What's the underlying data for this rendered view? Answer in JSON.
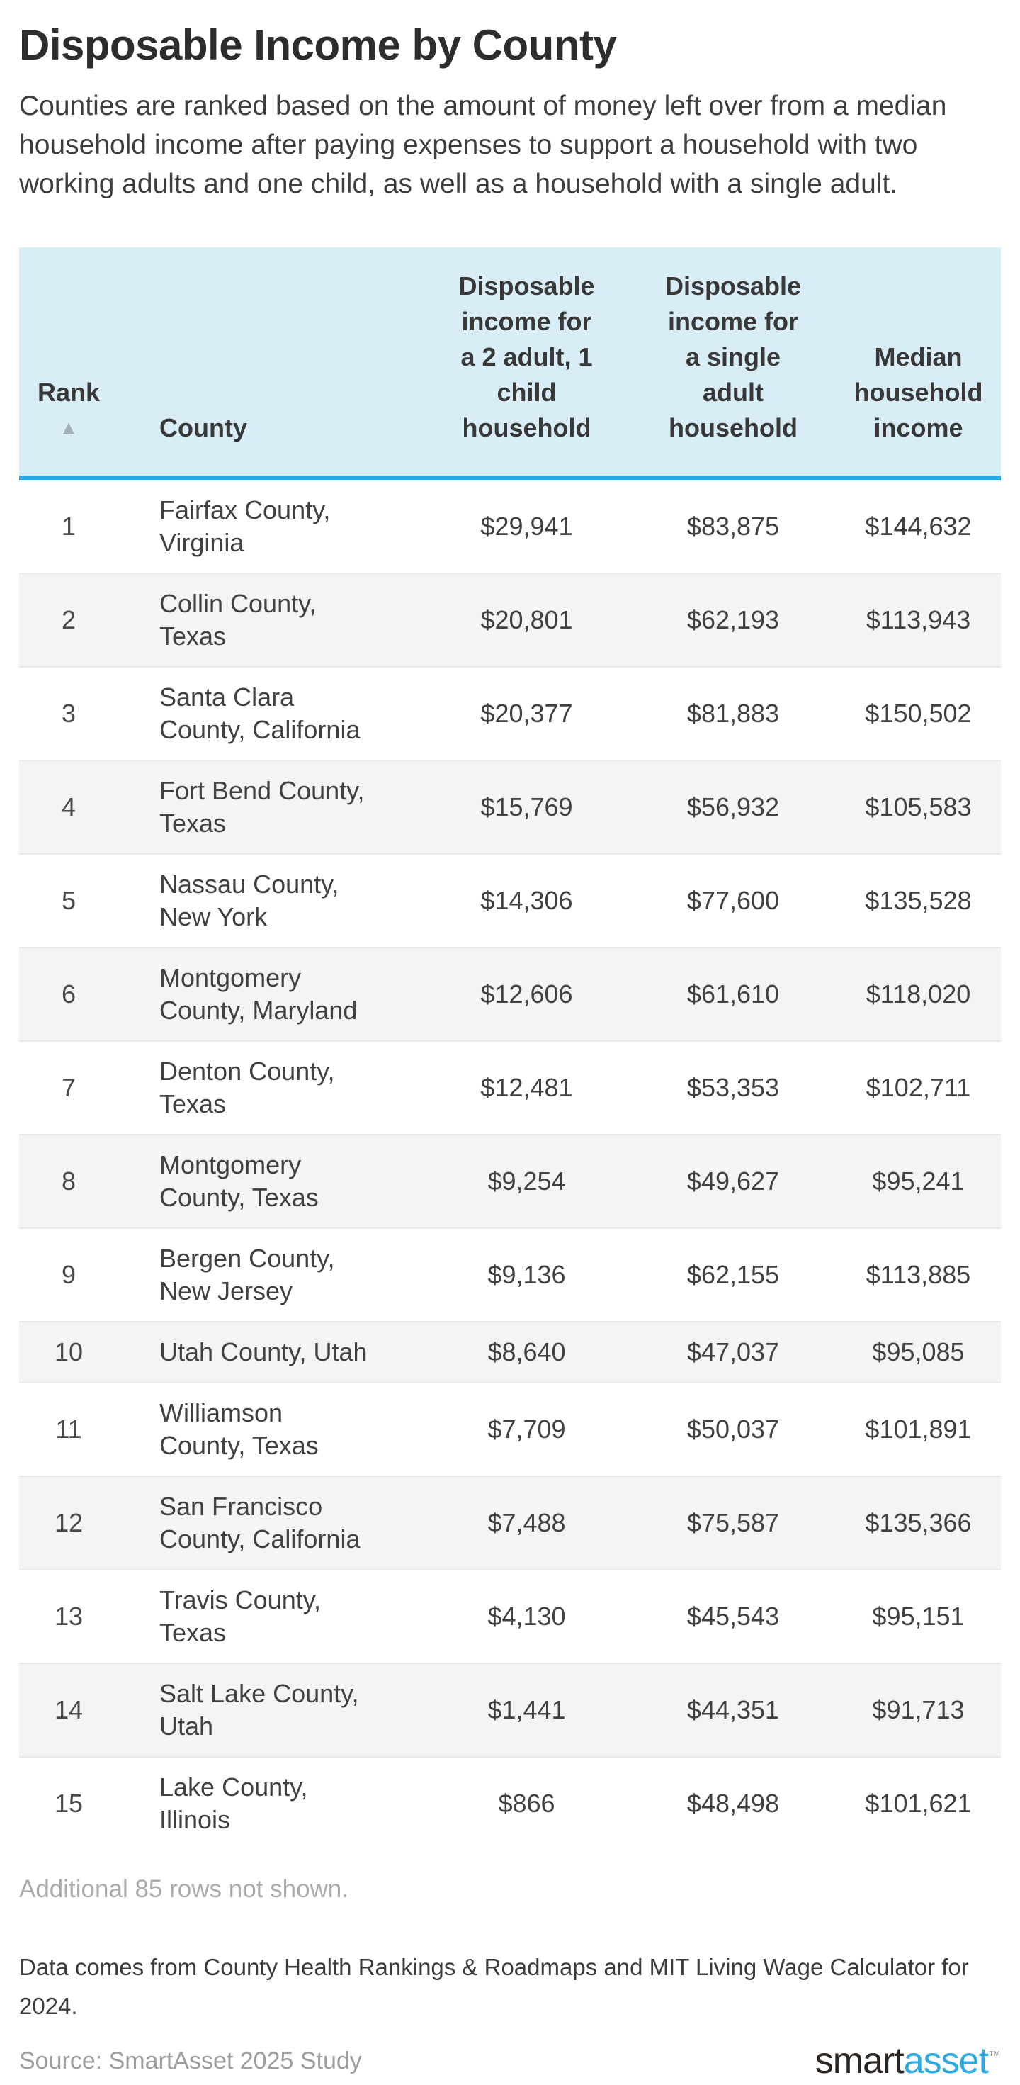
{
  "page": {
    "title": "Disposable Income by County",
    "subtitle": "Counties are ranked based on the amount of money left over from a median household income after paying expenses to support a household with two working adults and one child, as well as a household with a single adult."
  },
  "table": {
    "columns": [
      {
        "key": "rank",
        "label": "Rank",
        "sort_indicator": "▲"
      },
      {
        "key": "county",
        "label": "County"
      },
      {
        "key": "disposable_2a1c",
        "label": "Disposable income for a 2 adult, 1 child household"
      },
      {
        "key": "disposable_single",
        "label": "Disposable income for a single adult household"
      },
      {
        "key": "median_income",
        "label": "Median household income"
      }
    ],
    "rows": [
      {
        "rank": "1",
        "county": "Fairfax County, Virginia",
        "disposable_2a1c": "$29,941",
        "disposable_single": "$83,875",
        "median_income": "$144,632"
      },
      {
        "rank": "2",
        "county": "Collin County, Texas",
        "disposable_2a1c": "$20,801",
        "disposable_single": "$62,193",
        "median_income": "$113,943"
      },
      {
        "rank": "3",
        "county": "Santa Clara County, California",
        "disposable_2a1c": "$20,377",
        "disposable_single": "$81,883",
        "median_income": "$150,502"
      },
      {
        "rank": "4",
        "county": "Fort Bend County, Texas",
        "disposable_2a1c": "$15,769",
        "disposable_single": "$56,932",
        "median_income": "$105,583"
      },
      {
        "rank": "5",
        "county": "Nassau County, New York",
        "disposable_2a1c": "$14,306",
        "disposable_single": "$77,600",
        "median_income": "$135,528"
      },
      {
        "rank": "6",
        "county": "Montgomery County, Maryland",
        "disposable_2a1c": "$12,606",
        "disposable_single": "$61,610",
        "median_income": "$118,020"
      },
      {
        "rank": "7",
        "county": "Denton County, Texas",
        "disposable_2a1c": "$12,481",
        "disposable_single": "$53,353",
        "median_income": "$102,711"
      },
      {
        "rank": "8",
        "county": "Montgomery County, Texas",
        "disposable_2a1c": "$9,254",
        "disposable_single": "$49,627",
        "median_income": "$95,241"
      },
      {
        "rank": "9",
        "county": "Bergen County, New Jersey",
        "disposable_2a1c": "$9,136",
        "disposable_single": "$62,155",
        "median_income": "$113,885"
      },
      {
        "rank": "10",
        "county": "Utah County, Utah",
        "disposable_2a1c": "$8,640",
        "disposable_single": "$47,037",
        "median_income": "$95,085"
      },
      {
        "rank": "11",
        "county": "Williamson County, Texas",
        "disposable_2a1c": "$7,709",
        "disposable_single": "$50,037",
        "median_income": "$101,891"
      },
      {
        "rank": "12",
        "county": "San Francisco County, California",
        "disposable_2a1c": "$7,488",
        "disposable_single": "$75,587",
        "median_income": "$135,366"
      },
      {
        "rank": "13",
        "county": "Travis County, Texas",
        "disposable_2a1c": "$4,130",
        "disposable_single": "$45,543",
        "median_income": "$95,151"
      },
      {
        "rank": "14",
        "county": "Salt Lake County, Utah",
        "disposable_2a1c": "$1,441",
        "disposable_single": "$44,351",
        "median_income": "$91,713"
      },
      {
        "rank": "15",
        "county": "Lake County, Illinois",
        "disposable_2a1c": "$866",
        "disposable_single": "$48,498",
        "median_income": "$101,621"
      }
    ]
  },
  "footer": {
    "additional_rows_note": "Additional 85 rows not shown.",
    "data_note": "Data comes from County Health Rankings & Roadmaps and MIT Living Wage Calculator for 2024.",
    "source": "Source: SmartAsset 2025 Study",
    "logo": {
      "smart": "smart",
      "asset": "asset",
      "tm": "™"
    }
  },
  "colors": {
    "header_background": "#d9edf7",
    "header_rule": "#29a8df",
    "row_stripe": "#f4f4f4",
    "row_border": "#e9e9e9",
    "muted_text": "#ababab",
    "logo_blue": "#2da9e1",
    "sort_arrow": "#a3aeb8"
  },
  "chart_data": {
    "type": "table",
    "title": "Disposable Income by County",
    "columns": [
      "Rank",
      "County",
      "Disposable income for a 2 adult, 1 child household",
      "Disposable income for a single adult household",
      "Median household income"
    ],
    "rows": [
      [
        1,
        "Fairfax County, Virginia",
        29941,
        83875,
        144632
      ],
      [
        2,
        "Collin County, Texas",
        20801,
        62193,
        113943
      ],
      [
        3,
        "Santa Clara County, California",
        20377,
        81883,
        150502
      ],
      [
        4,
        "Fort Bend County, Texas",
        15769,
        56932,
        105583
      ],
      [
        5,
        "Nassau County, New York",
        14306,
        77600,
        135528
      ],
      [
        6,
        "Montgomery County, Maryland",
        12606,
        61610,
        118020
      ],
      [
        7,
        "Denton County, Texas",
        12481,
        53353,
        102711
      ],
      [
        8,
        "Montgomery County, Texas",
        9254,
        49627,
        95241
      ],
      [
        9,
        "Bergen County, New Jersey",
        9136,
        62155,
        113885
      ],
      [
        10,
        "Utah County, Utah",
        8640,
        47037,
        95085
      ],
      [
        11,
        "Williamson County, Texas",
        7709,
        50037,
        101891
      ],
      [
        12,
        "San Francisco County, California",
        7488,
        75587,
        135366
      ],
      [
        13,
        "Travis County, Texas",
        4130,
        45543,
        95151
      ],
      [
        14,
        "Salt Lake County, Utah",
        1441,
        44351,
        91713
      ],
      [
        15,
        "Lake County, Illinois",
        866,
        48498,
        101621
      ]
    ],
    "notes": [
      "Additional 85 rows not shown.",
      "Sorted ascending by Rank"
    ]
  }
}
